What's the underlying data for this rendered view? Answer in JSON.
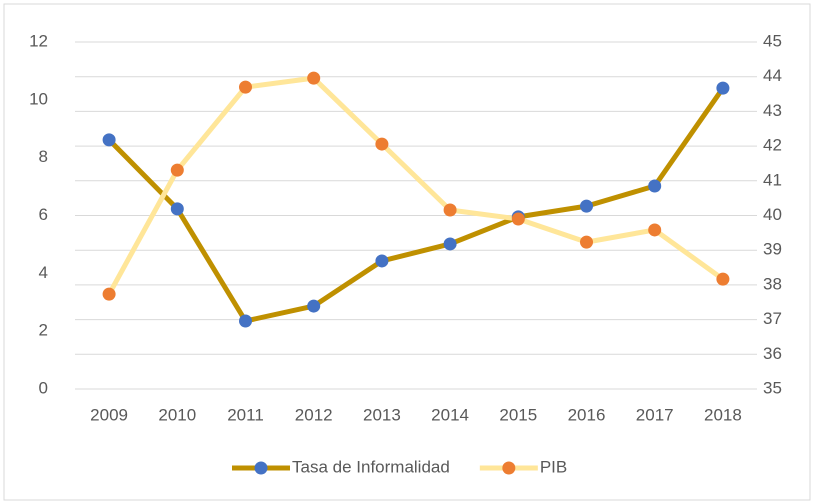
{
  "chart_data": {
    "type": "line",
    "categories": [
      "2009",
      "2010",
      "2011",
      "2012",
      "2013",
      "2014",
      "2015",
      "2016",
      "2017",
      "2018"
    ],
    "series": [
      {
        "name": "Tasa de Informalidad",
        "color": "#bf9000",
        "marker_color": "#4472c4",
        "axis": "y2",
        "values": [
          42.18,
          40.19,
          36.96,
          37.39,
          38.69,
          39.18,
          39.96,
          40.27,
          40.85,
          43.67
        ]
      },
      {
        "name": "PIB",
        "color": "#ffe699",
        "marker_color": "#ed7d31",
        "axis": "y",
        "values": [
          3.28,
          7.57,
          10.44,
          10.75,
          8.47,
          6.19,
          5.88,
          5.08,
          5.5,
          3.8
        ]
      }
    ],
    "ylim": [
      0,
      12
    ],
    "yticks": [
      0,
      2,
      4,
      6,
      8,
      10,
      12
    ],
    "y2lim": [
      35,
      45
    ],
    "y2ticks": [
      35,
      36,
      37,
      38,
      39,
      40,
      41,
      42,
      43,
      44,
      45
    ],
    "grid": true,
    "legend": "bottom"
  }
}
